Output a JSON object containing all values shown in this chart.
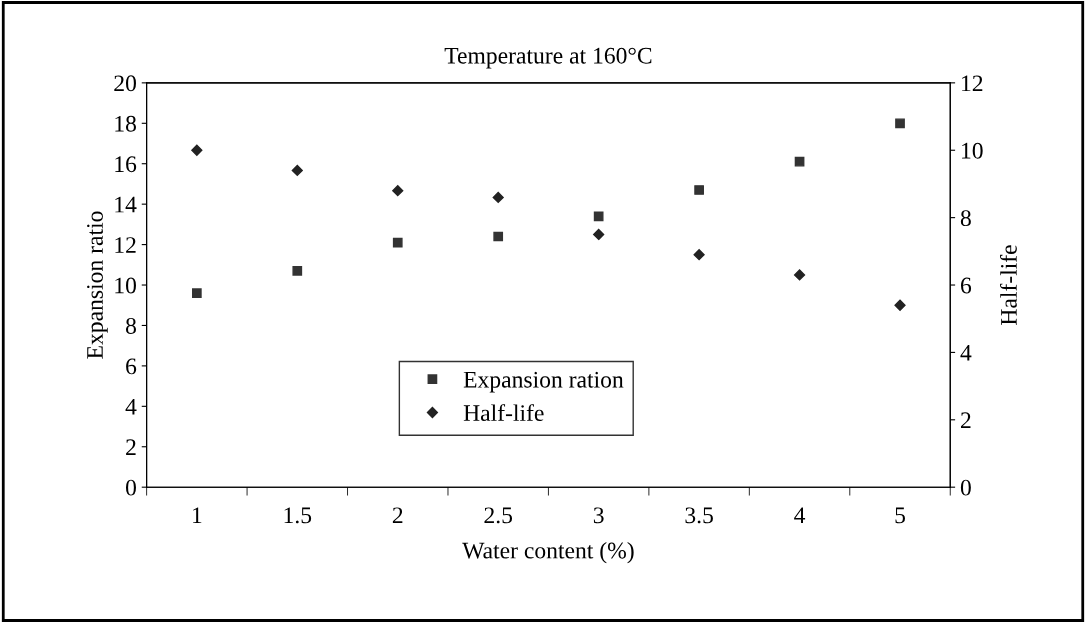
{
  "chart_data": {
    "type": "scatter",
    "title": "Temperature at 160°C",
    "xlabel": "Water content (%)",
    "ylabel": "Expansion ratio",
    "y2label": "Half-life",
    "categories": [
      "1",
      "1.5",
      "2",
      "2.5",
      "3",
      "3.5",
      "4",
      "5"
    ],
    "series": [
      {
        "name": "Expansion ration",
        "color": "#333333",
        "marker": "square",
        "values": [
          9.6,
          10.7,
          12.1,
          12.4,
          13.4,
          14.7,
          16.1,
          18.0
        ]
      },
      {
        "name": "Half-life",
        "color": "#222222",
        "marker": "diamond",
        "axis": "y2",
        "values": [
          10.0,
          9.4,
          8.8,
          8.6,
          7.5,
          6.9,
          6.3,
          5.4
        ]
      }
    ],
    "ylim": [
      0,
      20
    ],
    "yticks": [
      0,
      2,
      4,
      6,
      8,
      10,
      12,
      14,
      16,
      18,
      20
    ],
    "y2lim": [
      0,
      12
    ],
    "y2ticks": [
      0,
      2,
      4,
      6,
      8,
      10,
      12
    ],
    "grid": false,
    "legend": "bottom"
  }
}
